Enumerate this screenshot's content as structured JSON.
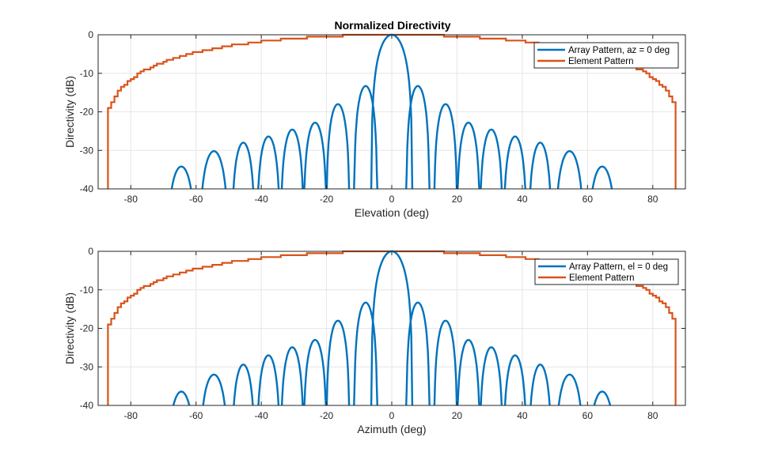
{
  "figure_title": "Normalized Directivity",
  "colors": {
    "array": "#0072BD",
    "element": "#D95319",
    "grid": "#e6e6e6",
    "axis": "#262626"
  },
  "chart_data": [
    {
      "type": "line",
      "title": "Normalized Directivity",
      "xlabel": "Elevation (deg)",
      "ylabel": "Directivity (dB)",
      "xlim": [
        -90,
        90
      ],
      "ylim": [
        -40,
        0
      ],
      "xticks": [
        -80,
        -60,
        -40,
        -20,
        0,
        20,
        40,
        60,
        80
      ],
      "yticks": [
        0,
        -10,
        -20,
        -30,
        -40
      ],
      "grid": true,
      "legend_position": "top-right",
      "series": [
        {
          "name": "Array Pattern, az = 0 deg",
          "lobes": [
            {
              "center": -64.5,
              "peak": -34.2
            },
            {
              "center": -54.5,
              "peak": -30.2
            },
            {
              "center": -45.5,
              "peak": -28.0
            },
            {
              "center": -37.8,
              "peak": -26.4
            },
            {
              "center": -30.5,
              "peak": -24.6
            },
            {
              "center": -23.5,
              "peak": -22.8
            },
            {
              "center": -16.5,
              "peak": -18.0
            },
            {
              "center": -8.0,
              "peak": -13.3
            },
            {
              "center": 0,
              "peak": 0
            },
            {
              "center": 8.0,
              "peak": -13.3
            },
            {
              "center": 16.5,
              "peak": -18.0
            },
            {
              "center": 23.5,
              "peak": -22.8
            },
            {
              "center": 30.5,
              "peak": -24.6
            },
            {
              "center": 37.8,
              "peak": -26.4
            },
            {
              "center": 45.5,
              "peak": -28.0
            },
            {
              "center": 54.5,
              "peak": -30.2
            },
            {
              "center": 64.5,
              "peak": -34.2
            }
          ]
        },
        {
          "name": "Element Pattern",
          "model": "cos^1.5 stepped"
        }
      ]
    },
    {
      "type": "line",
      "xlabel": "Azimuth (deg)",
      "ylabel": "Directivity (dB)",
      "xlim": [
        -90,
        90
      ],
      "ylim": [
        -40,
        0
      ],
      "xticks": [
        -80,
        -60,
        -40,
        -20,
        0,
        20,
        40,
        60,
        80
      ],
      "yticks": [
        0,
        -10,
        -20,
        -30,
        -40
      ],
      "grid": true,
      "legend_position": "top-right",
      "series": [
        {
          "name": "Array Pattern, el = 0 deg",
          "lobes": [
            {
              "center": -64.5,
              "peak": -36.4
            },
            {
              "center": -54.5,
              "peak": -32.0
            },
            {
              "center": -45.5,
              "peak": -29.4
            },
            {
              "center": -37.8,
              "peak": -27.0
            },
            {
              "center": -30.5,
              "peak": -24.9
            },
            {
              "center": -23.5,
              "peak": -23.0
            },
            {
              "center": -16.5,
              "peak": -18.0
            },
            {
              "center": -8.0,
              "peak": -13.3
            },
            {
              "center": 0,
              "peak": 0
            },
            {
              "center": 8.0,
              "peak": -13.3
            },
            {
              "center": 16.5,
              "peak": -18.0
            },
            {
              "center": 23.5,
              "peak": -23.0
            },
            {
              "center": 30.5,
              "peak": -24.9
            },
            {
              "center": 37.8,
              "peak": -27.0
            },
            {
              "center": 45.5,
              "peak": -29.4
            },
            {
              "center": 54.5,
              "peak": -32.0
            },
            {
              "center": 64.5,
              "peak": -36.4
            }
          ]
        },
        {
          "name": "Element Pattern",
          "model": "cos^1.5 stepped"
        }
      ]
    }
  ]
}
